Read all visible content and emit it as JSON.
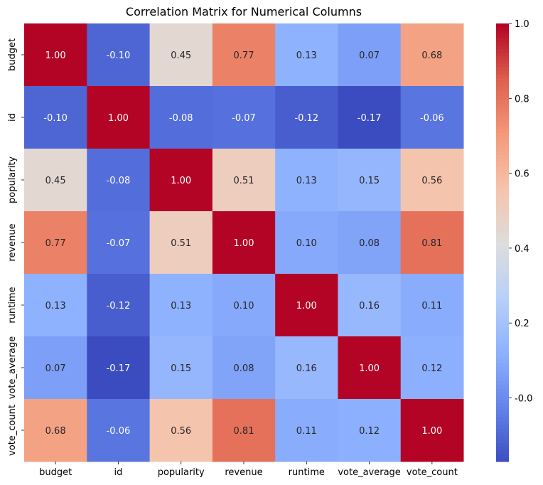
{
  "chart_data": {
    "type": "heatmap",
    "title": "Correlation Matrix for Numerical Columns",
    "xlabel": "",
    "ylabel": "",
    "x_labels": [
      "budget",
      "id",
      "popularity",
      "revenue",
      "runtime",
      "vote_average",
      "vote_count"
    ],
    "y_labels": [
      "budget",
      "id",
      "popularity",
      "revenue",
      "runtime",
      "vote_average",
      "vote_count"
    ],
    "values": [
      [
        1.0,
        -0.1,
        0.45,
        0.77,
        0.13,
        0.07,
        0.68
      ],
      [
        -0.1,
        1.0,
        -0.08,
        -0.07,
        -0.12,
        -0.17,
        -0.06
      ],
      [
        0.45,
        -0.08,
        1.0,
        0.51,
        0.13,
        0.15,
        0.56
      ],
      [
        0.77,
        -0.07,
        0.51,
        1.0,
        0.1,
        0.08,
        0.81
      ],
      [
        0.13,
        -0.12,
        0.13,
        0.1,
        1.0,
        0.16,
        0.11
      ],
      [
        0.07,
        -0.17,
        0.15,
        0.08,
        0.16,
        1.0,
        0.12
      ],
      [
        0.68,
        -0.06,
        0.56,
        0.81,
        0.11,
        0.12,
        1.0
      ]
    ],
    "annotation_format": "2 decimals",
    "colormap": "coolwarm",
    "vmin": -0.17,
    "vmax": 1.0,
    "colorbar_ticks": [
      "-0.0",
      "0.2",
      "0.4",
      "0.6",
      "0.8",
      "1.0"
    ],
    "colorbar_tick_values": [
      0.0,
      0.2,
      0.4,
      0.6,
      0.8,
      1.0
    ],
    "grid": false,
    "legend": "colorbar-right"
  }
}
